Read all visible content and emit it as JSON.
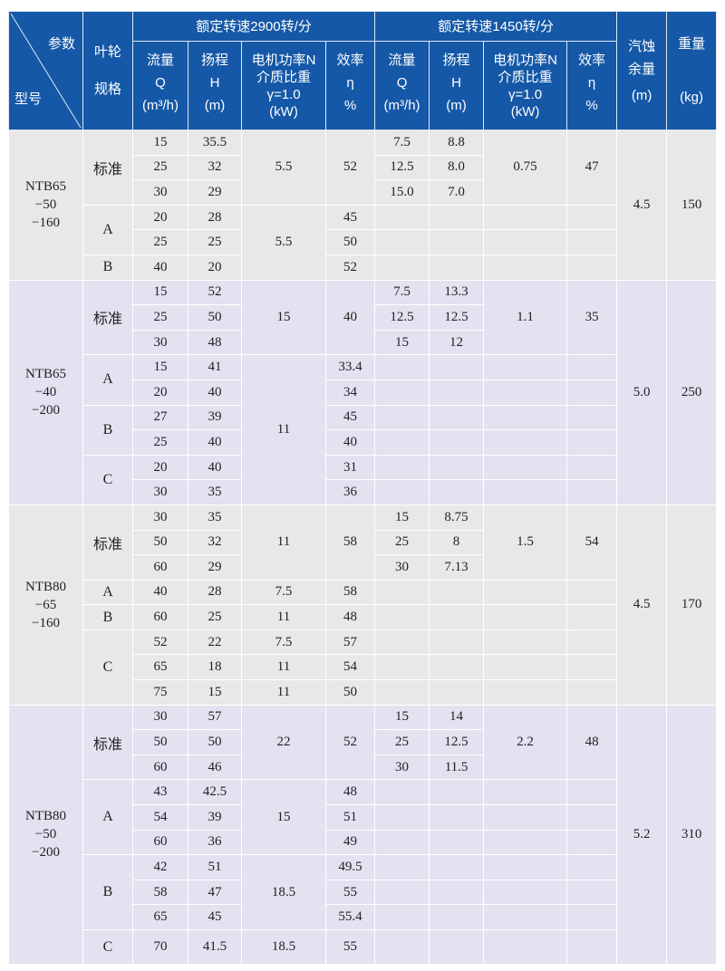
{
  "header": {
    "param": "参数",
    "model": "型号",
    "impeller": [
      "叶轮",
      "规格"
    ],
    "speed_2900": "额定转速2900转/分",
    "speed_1450": "额定转速1450转/分",
    "flow": [
      "流量",
      "Q",
      "(m³/h)"
    ],
    "head": [
      "扬程",
      "H",
      "(m)"
    ],
    "power": [
      "电机功率N",
      "介质比重",
      "γ=1.0",
      "(kW)"
    ],
    "efficiency": [
      "效率",
      "η",
      "%"
    ],
    "npsh": [
      "汽蚀",
      "余量",
      "(m)"
    ],
    "weight": [
      "重量",
      "(kg)"
    ]
  },
  "groups": [
    {
      "model": [
        "NTB65",
        "−50",
        "−160"
      ],
      "npsh": "4.5",
      "weight": "150",
      "impellers": [
        {
          "name": "标准",
          "rows": 3
        },
        {
          "name": "A",
          "rows": 2
        },
        {
          "name": "B",
          "rows": 1
        }
      ],
      "rows2900": [
        [
          "15",
          "35.5"
        ],
        [
          "25",
          "32"
        ],
        [
          "30",
          "29"
        ],
        [
          "20",
          "28"
        ],
        [
          "25",
          "25"
        ],
        [
          "40",
          "20"
        ]
      ],
      "motor2900": [
        {
          "value": "5.5",
          "rows": 3
        },
        {
          "value": "5.5",
          "rows": 3
        }
      ],
      "eff2900": [
        {
          "value": "52",
          "rows": 3
        },
        {
          "value": "45",
          "rows": 1
        },
        {
          "value": "50",
          "rows": 1
        },
        {
          "value": "52",
          "rows": 1
        }
      ],
      "rows1450": [
        [
          "7.5",
          "8.8"
        ],
        [
          "12.5",
          "8.0"
        ],
        [
          "15.0",
          "7.0"
        ]
      ],
      "motor1450": "0.75",
      "eff1450": "47"
    },
    {
      "model": [
        "NTB65",
        "−40",
        "−200"
      ],
      "npsh": "5.0",
      "weight": "250",
      "impellers": [
        {
          "name": "标准",
          "rows": 3
        },
        {
          "name": "A",
          "rows": 2
        },
        {
          "name": "B",
          "rows": 2
        },
        {
          "name": "C",
          "rows": 2
        }
      ],
      "rows2900": [
        [
          "15",
          "52"
        ],
        [
          "25",
          "50"
        ],
        [
          "30",
          "48"
        ],
        [
          "15",
          "41"
        ],
        [
          "20",
          "40"
        ],
        [
          "27",
          "39"
        ],
        [
          "25",
          "40"
        ],
        [
          "20",
          "40"
        ],
        [
          "30",
          "35"
        ]
      ],
      "motor2900": [
        {
          "value": "15",
          "rows": 3
        },
        {
          "value": "11",
          "rows": 6
        }
      ],
      "eff2900": [
        {
          "value": "40",
          "rows": 3
        },
        {
          "value": "33.4",
          "rows": 1
        },
        {
          "value": "34",
          "rows": 1
        },
        {
          "value": "45",
          "rows": 1
        },
        {
          "value": "40",
          "rows": 1
        },
        {
          "value": "31",
          "rows": 1
        },
        {
          "value": "36",
          "rows": 1
        }
      ],
      "rows1450": [
        [
          "7.5",
          "13.3"
        ],
        [
          "12.5",
          "12.5"
        ],
        [
          "15",
          "12"
        ]
      ],
      "motor1450": "1.1",
      "eff1450": "35"
    },
    {
      "model": [
        "NTB80",
        "−65",
        "−160"
      ],
      "npsh": "4.5",
      "weight": "170",
      "impellers": [
        {
          "name": "标准",
          "rows": 3
        },
        {
          "name": "A",
          "rows": 1
        },
        {
          "name": "B",
          "rows": 1
        },
        {
          "name": "C",
          "rows": 3
        }
      ],
      "rows2900": [
        [
          "30",
          "35"
        ],
        [
          "50",
          "32"
        ],
        [
          "60",
          "29"
        ],
        [
          "40",
          "28"
        ],
        [
          "60",
          "25"
        ],
        [
          "52",
          "22"
        ],
        [
          "65",
          "18"
        ],
        [
          "75",
          "15"
        ]
      ],
      "motor2900": [
        {
          "value": "11",
          "rows": 3
        },
        {
          "value": "7.5",
          "rows": 1
        },
        {
          "value": "11",
          "rows": 1
        },
        {
          "value": "7.5",
          "rows": 1
        },
        {
          "value": "11",
          "rows": 1
        },
        {
          "value": "11",
          "rows": 1
        }
      ],
      "eff2900": [
        {
          "value": "58",
          "rows": 3
        },
        {
          "value": "58",
          "rows": 1
        },
        {
          "value": "48",
          "rows": 1
        },
        {
          "value": "57",
          "rows": 1
        },
        {
          "value": "54",
          "rows": 1
        },
        {
          "value": "50",
          "rows": 1
        }
      ],
      "rows1450": [
        [
          "15",
          "8.75"
        ],
        [
          "25",
          "8"
        ],
        [
          "30",
          "7.13"
        ]
      ],
      "motor1450": "1.5",
      "eff1450": "54"
    },
    {
      "model": [
        "NTB80",
        "−50",
        "−200"
      ],
      "npsh": "5.2",
      "weight": "310",
      "impellers": [
        {
          "name": "标准",
          "rows": 3
        },
        {
          "name": "A",
          "rows": 3
        },
        {
          "name": "B",
          "rows": 3
        },
        {
          "name": "C",
          "rows": 1
        }
      ],
      "rows2900": [
        [
          "30",
          "57"
        ],
        [
          "50",
          "50"
        ],
        [
          "60",
          "46"
        ],
        [
          "43",
          "42.5"
        ],
        [
          "54",
          "39"
        ],
        [
          "60",
          "36"
        ],
        [
          "42",
          "51"
        ],
        [
          "58",
          "47"
        ],
        [
          "65",
          "45"
        ],
        [
          "70",
          "41.5"
        ]
      ],
      "motor2900": [
        {
          "value": "22",
          "rows": 3
        },
        {
          "value": "15",
          "rows": 3
        },
        {
          "value": "18.5",
          "rows": 3
        },
        {
          "value": "18.5",
          "rows": 1
        }
      ],
      "eff2900": [
        {
          "value": "52",
          "rows": 3
        },
        {
          "value": "48",
          "rows": 1
        },
        {
          "value": "51",
          "rows": 1
        },
        {
          "value": "49",
          "rows": 1
        },
        {
          "value": "49.5",
          "rows": 1
        },
        {
          "value": "55",
          "rows": 1
        },
        {
          "value": "55.4",
          "rows": 1
        },
        {
          "value": "55",
          "rows": 1
        }
      ],
      "rows1450": [
        [
          "15",
          "14"
        ],
        [
          "25",
          "12.5"
        ],
        [
          "30",
          "11.5"
        ]
      ],
      "motor1450": "2.2",
      "eff1450": "48"
    }
  ]
}
